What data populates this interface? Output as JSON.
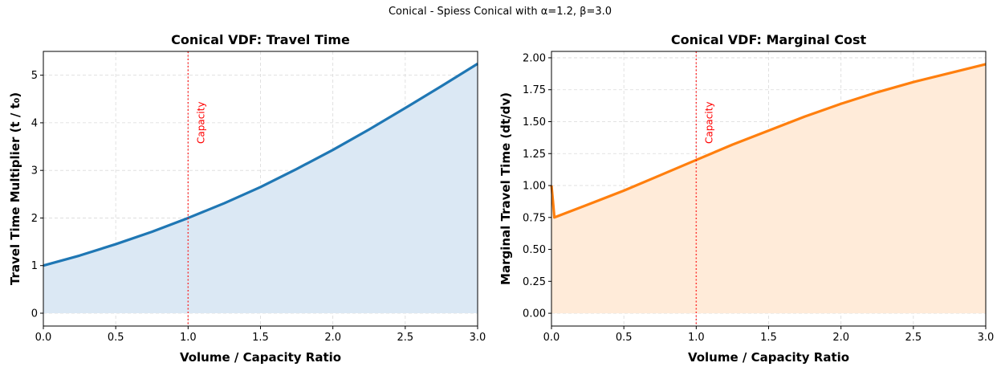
{
  "suptitle": "Conical - Spiess Conical with α=1.2, β=3.0",
  "chart_data": [
    {
      "type": "area",
      "title": "Conical VDF: Travel Time",
      "xlabel": "Volume / Capacity Ratio",
      "ylabel": "Travel Time Multiplier (t / t₀)",
      "xlim": [
        0,
        3
      ],
      "ylim": [
        -0.27,
        5.5
      ],
      "xticks": [
        "0.0",
        "0.5",
        "1.0",
        "1.5",
        "2.0",
        "2.5",
        "3.0"
      ],
      "yticks": [
        "0",
        "1",
        "2",
        "3",
        "4",
        "5"
      ],
      "grid": true,
      "annotation": {
        "x": 1.0,
        "text": "Capacity",
        "style": "dotted vertical line"
      },
      "series": [
        {
          "color": "#1f77b4",
          "fill": "#dbe8f4",
          "x": [
            0,
            0.25,
            0.5,
            0.75,
            1.0,
            1.25,
            1.5,
            1.75,
            2.0,
            2.25,
            2.5,
            2.75,
            3.0
          ],
          "values": [
            1.0,
            1.21,
            1.45,
            1.71,
            2.0,
            2.31,
            2.65,
            3.03,
            3.43,
            3.86,
            4.31,
            4.77,
            5.24
          ]
        }
      ]
    },
    {
      "type": "area",
      "title": "Conical VDF: Marginal Cost",
      "xlabel": "Volume / Capacity Ratio",
      "ylabel": "Marginal Travel Time (dt/dv)",
      "xlim": [
        0,
        3
      ],
      "ylim": [
        -0.1,
        2.05
      ],
      "xticks": [
        "0.0",
        "0.5",
        "1.0",
        "1.5",
        "2.0",
        "2.5",
        "3.0"
      ],
      "yticks": [
        "0.00",
        "0.25",
        "0.50",
        "0.75",
        "1.00",
        "1.25",
        "1.50",
        "1.75",
        "2.00"
      ],
      "grid": true,
      "annotation": {
        "x": 1.0,
        "text": "Capacity",
        "style": "dotted vertical line"
      },
      "series": [
        {
          "color": "#ff7f0e",
          "fill": "#ffebd9",
          "x": [
            0,
            0.01,
            0.02,
            0.25,
            0.5,
            0.75,
            1.0,
            1.25,
            1.5,
            1.75,
            2.0,
            2.25,
            2.5,
            2.75,
            3.0
          ],
          "values": [
            1.0,
            0.88,
            0.75,
            0.85,
            0.96,
            1.08,
            1.2,
            1.32,
            1.43,
            1.54,
            1.64,
            1.73,
            1.81,
            1.88,
            1.95
          ]
        }
      ]
    }
  ]
}
